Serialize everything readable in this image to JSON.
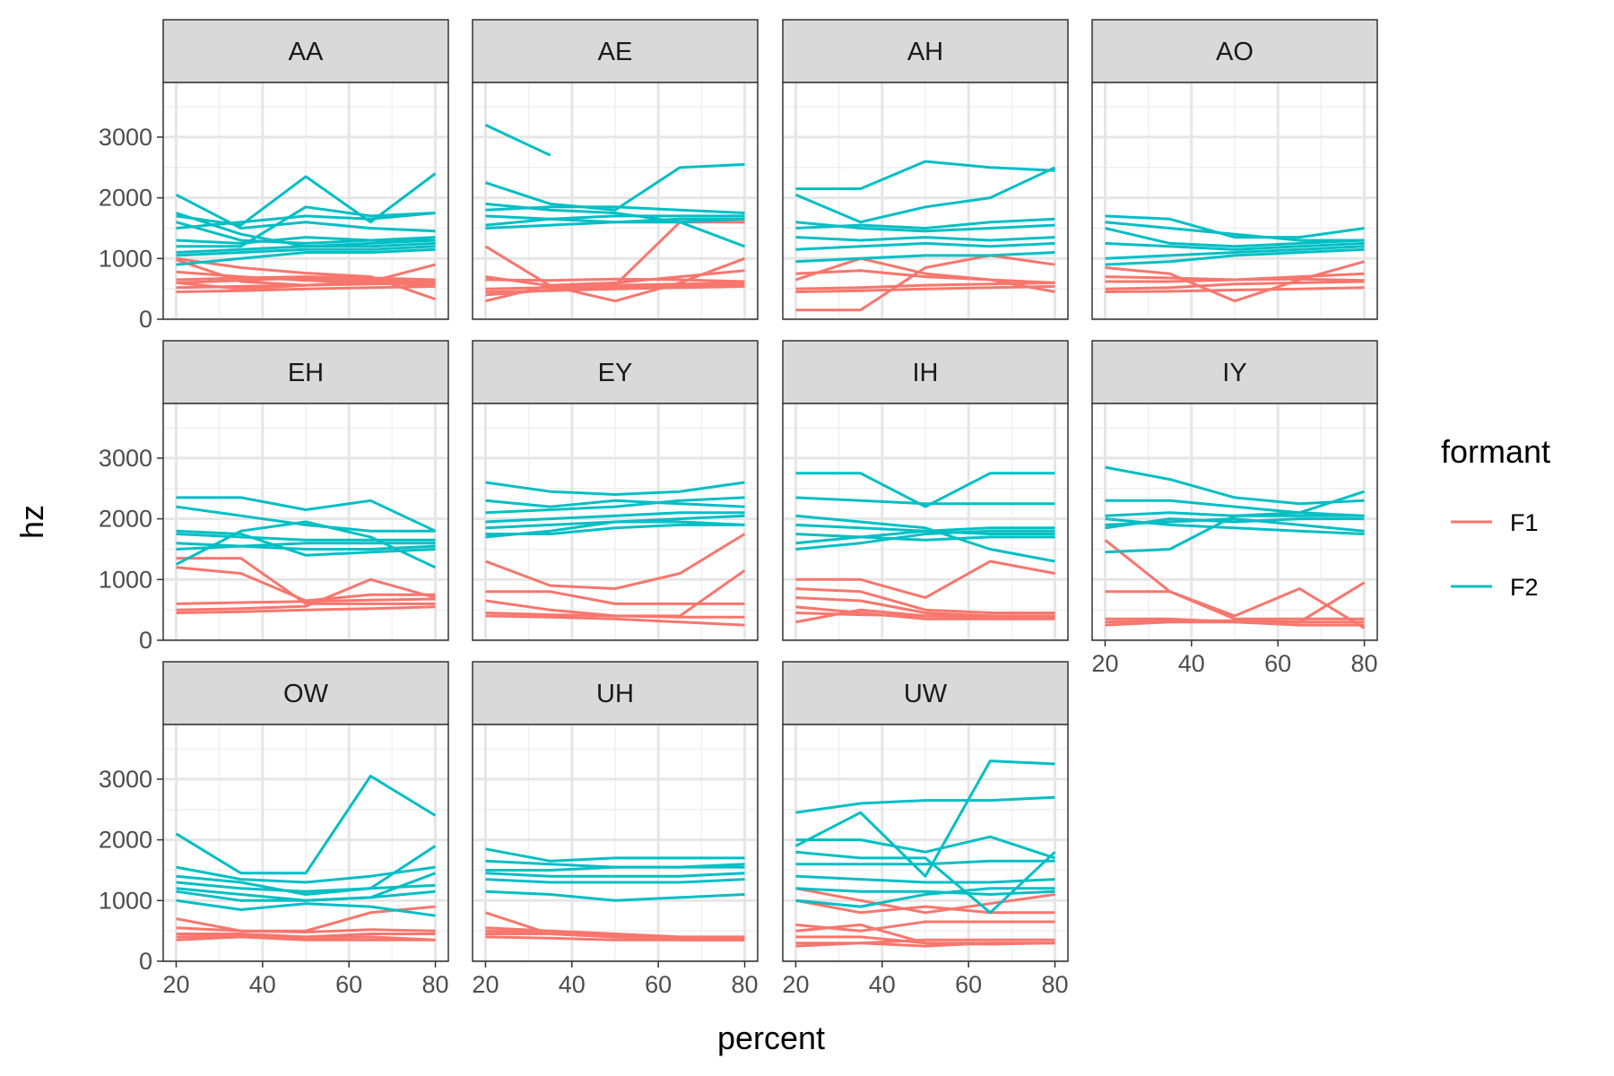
{
  "chart_data": {
    "type": "line",
    "xlabel": "percent",
    "ylabel": "hz",
    "xlim": [
      17,
      83
    ],
    "ylim": [
      0,
      3900
    ],
    "x_ticks": [
      20,
      40,
      60,
      80
    ],
    "y_ticks": [
      0,
      1000,
      2000,
      3000
    ],
    "grid": true,
    "legend": {
      "title": "formant",
      "position": "right",
      "entries": [
        {
          "label": "F1",
          "color": "#F8766D"
        },
        {
          "label": "F2",
          "color": "#00BFC4"
        }
      ]
    },
    "x": [
      20,
      35,
      50,
      65,
      80
    ],
    "facets": [
      {
        "label": "AA",
        "F1": [
          [
            980,
            620,
            560,
            600,
            560
          ],
          [
            520,
            540,
            560,
            580,
            600
          ],
          [
            600,
            640,
            680,
            640,
            610
          ],
          [
            450,
            470,
            500,
            520,
            540
          ],
          [
            780,
            700,
            640,
            600,
            580
          ],
          [
            1000,
            850,
            760,
            700,
            330
          ],
          [
            600,
            500,
            560,
            620,
            900
          ],
          [
            650,
            680,
            700,
            680,
            650
          ]
        ],
        "F2": [
          [
            2050,
            1500,
            1600,
            1500,
            1450
          ],
          [
            1700,
            1550,
            2350,
            1600,
            2400
          ],
          [
            1200,
            1200,
            1850,
            1700,
            1750
          ],
          [
            1600,
            1300,
            1250,
            1300,
            1350
          ],
          [
            1100,
            1150,
            1200,
            1200,
            1250
          ],
          [
            900,
            1000,
            1100,
            1100,
            1150
          ],
          [
            1500,
            1600,
            1700,
            1650,
            1750
          ],
          [
            1300,
            1250,
            1350,
            1300,
            1300
          ],
          [
            1750,
            1400,
            1200,
            1250,
            1300
          ],
          [
            1050,
            1100,
            1150,
            1150,
            1200
          ]
        ]
      },
      {
        "label": "AE",
        "F1": [
          [
            1200,
            550,
            300,
            600,
            1000
          ],
          [
            300,
            560,
            600,
            700,
            800
          ],
          [
            500,
            520,
            560,
            580,
            600
          ],
          [
            450,
            470,
            500,
            520,
            540
          ],
          [
            650,
            640,
            660,
            650,
            620
          ],
          [
            700,
            550,
            560,
            1600,
            1600
          ],
          [
            400,
            480,
            520,
            540,
            560
          ]
        ],
        "F2": [
          [
            3200,
            2700,
            null,
            null,
            null
          ],
          [
            2250,
            1900,
            1800,
            2500,
            2550
          ],
          [
            1700,
            1650,
            1600,
            1600,
            1650
          ],
          [
            1900,
            1800,
            1750,
            1600,
            1200
          ],
          [
            1550,
            1650,
            1700,
            1700,
            1700
          ],
          [
            1500,
            1550,
            1600,
            1650,
            1650
          ],
          [
            1800,
            1850,
            1850,
            1800,
            1750
          ]
        ]
      },
      {
        "label": "AH",
        "F1": [
          [
            150,
            150,
            850,
            1050,
            900
          ],
          [
            500,
            520,
            560,
            580,
            600
          ],
          [
            750,
            800,
            700,
            650,
            600
          ],
          [
            450,
            470,
            500,
            520,
            540
          ],
          [
            650,
            1000,
            750,
            650,
            450
          ]
        ],
        "F2": [
          [
            2150,
            2150,
            2600,
            2500,
            2450
          ],
          [
            2050,
            1600,
            1850,
            2000,
            2500
          ],
          [
            1500,
            1550,
            1500,
            1600,
            1650
          ],
          [
            1150,
            1200,
            1250,
            1200,
            1250
          ],
          [
            1350,
            1300,
            1350,
            1300,
            1350
          ],
          [
            950,
            1000,
            1050,
            1050,
            1100
          ],
          [
            1600,
            1500,
            1450,
            1500,
            1550
          ]
        ]
      },
      {
        "label": "AO",
        "F1": [
          [
            700,
            680,
            650,
            700,
            750
          ],
          [
            500,
            520,
            580,
            600,
            620
          ],
          [
            850,
            750,
            300,
            650,
            950
          ],
          [
            450,
            460,
            480,
            500,
            520
          ],
          [
            620,
            620,
            650,
            660,
            640
          ]
        ],
        "F2": [
          [
            1700,
            1650,
            1350,
            1350,
            1500
          ],
          [
            1500,
            1250,
            1200,
            1250,
            1300
          ],
          [
            1000,
            1050,
            1100,
            1150,
            1200
          ],
          [
            1250,
            1200,
            1150,
            1200,
            1250
          ],
          [
            900,
            950,
            1050,
            1100,
            1150
          ],
          [
            1600,
            1500,
            1400,
            1300,
            1300
          ]
        ]
      },
      {
        "label": "EH",
        "F1": [
          [
            1350,
            1350,
            600,
            600,
            600
          ],
          [
            1200,
            1100,
            650,
            750,
            750
          ],
          [
            500,
            520,
            560,
            1000,
            700
          ],
          [
            450,
            470,
            500,
            520,
            550
          ],
          [
            600,
            620,
            640,
            660,
            680
          ]
        ],
        "F2": [
          [
            2350,
            2350,
            2150,
            2300,
            1800
          ],
          [
            2200,
            2050,
            1900,
            1800,
            1800
          ],
          [
            1250,
            1800,
            1950,
            1700,
            1200
          ],
          [
            1600,
            1550,
            1500,
            1500,
            1550
          ],
          [
            1750,
            1700,
            1650,
            1650,
            1650
          ],
          [
            1800,
            1750,
            1400,
            1450,
            1500
          ],
          [
            1500,
            1550,
            1600,
            1600,
            1600
          ]
        ]
      },
      {
        "label": "EY",
        "F1": [
          [
            1300,
            900,
            850,
            1100,
            1750
          ],
          [
            800,
            800,
            600,
            600,
            600
          ],
          [
            650,
            500,
            400,
            400,
            1150
          ],
          [
            400,
            380,
            350,
            300,
            250
          ],
          [
            450,
            420,
            400,
            380,
            380
          ]
        ],
        "F2": [
          [
            2600,
            2450,
            2400,
            2450,
            2600
          ],
          [
            2300,
            2200,
            2300,
            2250,
            2200
          ],
          [
            2100,
            2150,
            2200,
            2300,
            2350
          ],
          [
            1700,
            1800,
            1950,
            2000,
            2050
          ],
          [
            1850,
            1900,
            1950,
            1950,
            1900
          ],
          [
            1950,
            2000,
            2050,
            2100,
            2100
          ],
          [
            1750,
            1750,
            1850,
            1900,
            1900
          ]
        ]
      },
      {
        "label": "IH",
        "F1": [
          [
            1000,
            1000,
            700,
            1300,
            1100
          ],
          [
            700,
            650,
            450,
            400,
            400
          ],
          [
            300,
            500,
            400,
            400,
            400
          ],
          [
            450,
            420,
            400,
            380,
            380
          ],
          [
            850,
            800,
            500,
            450,
            450
          ],
          [
            550,
            450,
            350,
            350,
            350
          ]
        ],
        "F2": [
          [
            2750,
            2750,
            2200,
            2750,
            2750
          ],
          [
            2350,
            2300,
            2250,
            2250,
            2250
          ],
          [
            2050,
            1950,
            1850,
            1500,
            1300
          ],
          [
            1600,
            1700,
            1800,
            1850,
            1850
          ],
          [
            1750,
            1700,
            1650,
            1700,
            1700
          ],
          [
            1500,
            1600,
            1750,
            1800,
            1800
          ],
          [
            1900,
            1850,
            1800,
            1750,
            1750
          ]
        ]
      },
      {
        "label": "IY",
        "F1": [
          [
            1650,
            800,
            350,
            350,
            350
          ],
          [
            800,
            800,
            400,
            850,
            200
          ],
          [
            300,
            320,
            320,
            300,
            300
          ],
          [
            350,
            350,
            300,
            250,
            250
          ],
          [
            250,
            300,
            300,
            300,
            950
          ]
        ],
        "F2": [
          [
            2850,
            2650,
            2350,
            2250,
            2300
          ],
          [
            2300,
            2300,
            2200,
            2100,
            2050
          ],
          [
            1450,
            1500,
            2050,
            2100,
            2450
          ],
          [
            1850,
            2000,
            1950,
            2000,
            2000
          ],
          [
            2050,
            2100,
            2050,
            2050,
            2050
          ],
          [
            1900,
            1950,
            2000,
            1900,
            1800
          ],
          [
            2000,
            1900,
            1850,
            1800,
            1750
          ]
        ]
      },
      {
        "label": "OW",
        "F1": [
          [
            700,
            500,
            500,
            800,
            900
          ],
          [
            450,
            450,
            400,
            450,
            450
          ],
          [
            400,
            420,
            380,
            400,
            350
          ],
          [
            550,
            500,
            480,
            520,
            500
          ],
          [
            350,
            400,
            350,
            350,
            350
          ]
        ],
        "F2": [
          [
            2100,
            1450,
            1450,
            3050,
            2400
          ],
          [
            1550,
            1350,
            1300,
            1400,
            1550
          ],
          [
            1400,
            1300,
            1100,
            1200,
            1900
          ],
          [
            1150,
            1000,
            1000,
            1050,
            1450
          ],
          [
            1000,
            850,
            950,
            900,
            750
          ],
          [
            1300,
            1200,
            1150,
            1200,
            1250
          ],
          [
            1200,
            1100,
            1000,
            1050,
            1150
          ]
        ]
      },
      {
        "label": "UH",
        "F1": [
          [
            800,
            450,
            400,
            350,
            350
          ],
          [
            550,
            500,
            450,
            400,
            400
          ],
          [
            450,
            450,
            400,
            350,
            350
          ],
          [
            400,
            380,
            350,
            350,
            350
          ],
          [
            500,
            480,
            420,
            380,
            380
          ]
        ],
        "F2": [
          [
            1850,
            1650,
            1700,
            1700,
            1700
          ],
          [
            1500,
            1500,
            1550,
            1550,
            1550
          ],
          [
            1350,
            1300,
            1300,
            1300,
            1350
          ],
          [
            1150,
            1100,
            1000,
            1050,
            1100
          ],
          [
            1650,
            1600,
            1550,
            1550,
            1600
          ],
          [
            1450,
            1400,
            1400,
            1400,
            1450
          ]
        ]
      },
      {
        "label": "UW",
        "F1": [
          [
            1200,
            1000,
            800,
            950,
            1100
          ],
          [
            1000,
            800,
            900,
            800,
            800
          ],
          [
            600,
            500,
            650,
            650,
            650
          ],
          [
            300,
            300,
            350,
            350,
            350
          ],
          [
            400,
            400,
            300,
            300,
            300
          ],
          [
            250,
            300,
            250,
            300,
            300
          ],
          [
            500,
            600,
            300,
            280,
            300
          ]
        ],
        "F2": [
          [
            2450,
            2600,
            2650,
            2650,
            2700
          ],
          [
            1900,
            2450,
            1400,
            3300,
            3250
          ],
          [
            2000,
            2000,
            1800,
            2050,
            1700
          ],
          [
            1600,
            1600,
            1600,
            1650,
            1650
          ],
          [
            1400,
            1350,
            1300,
            1300,
            1350
          ],
          [
            1200,
            1150,
            1150,
            1100,
            1150
          ],
          [
            1800,
            1700,
            1700,
            800,
            1800
          ],
          [
            1000,
            900,
            1100,
            1200,
            1200
          ]
        ]
      }
    ]
  }
}
